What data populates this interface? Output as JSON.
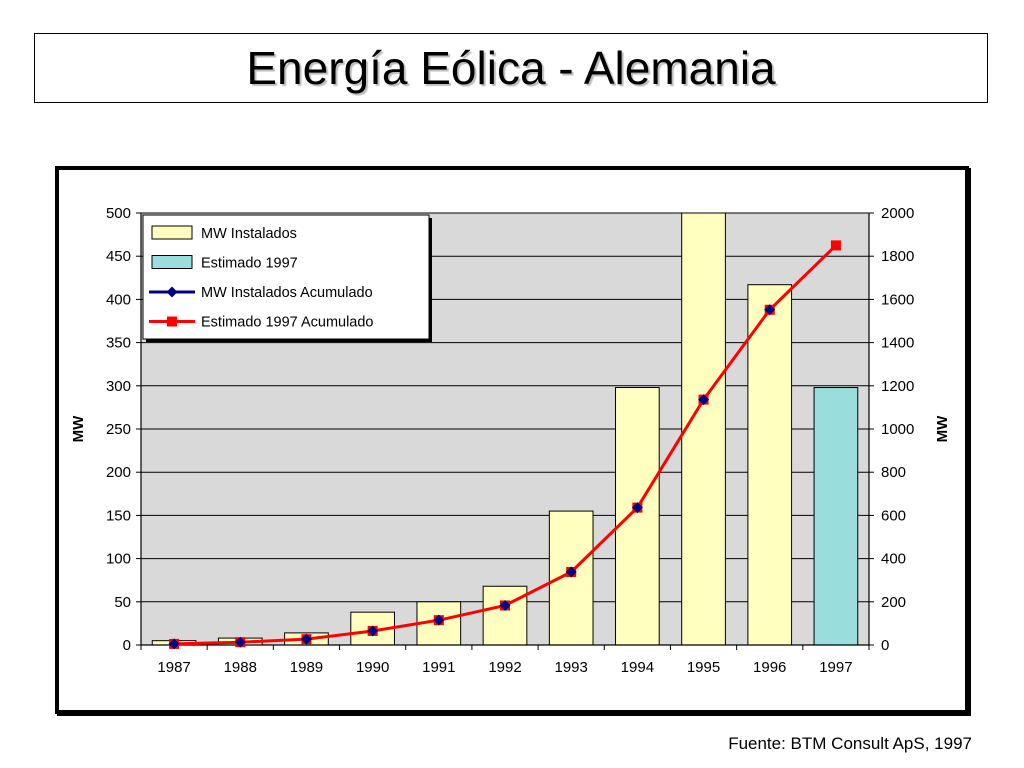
{
  "slide": {
    "title": "Energía Eólica - Alemania",
    "source": "Fuente: BTM Consult ApS, 1997"
  },
  "colors": {
    "plot_bg": "#d9d9d9",
    "bar_installed": "#ffffc0",
    "bar_estimate": "#99dddd",
    "line_cumulative": "#000080",
    "line_estimate": "#ff0000"
  },
  "chart_data": {
    "type": "bar",
    "categories": [
      "1987",
      "1988",
      "1989",
      "1990",
      "1991",
      "1992",
      "1993",
      "1994",
      "1995",
      "1996",
      "1997"
    ],
    "series": [
      {
        "name": "MW Instalados",
        "type": "bar",
        "axis": "left",
        "values": [
          5,
          8,
          14,
          38,
          50,
          68,
          155,
          298,
          500,
          417,
          null
        ]
      },
      {
        "name": "Estimado 1997",
        "type": "bar",
        "axis": "left",
        "values": [
          null,
          null,
          null,
          null,
          null,
          null,
          null,
          null,
          null,
          null,
          298
        ]
      },
      {
        "name": "MW Instalados Acumulado",
        "type": "line",
        "axis": "right",
        "marker": "diamond",
        "values": [
          5,
          13,
          27,
          65,
          115,
          183,
          338,
          636,
          1136,
          1552,
          null
        ]
      },
      {
        "name": "Estimado 1997 Acumulado",
        "type": "line",
        "axis": "right",
        "marker": "square",
        "values": [
          5,
          13,
          27,
          65,
          115,
          183,
          338,
          636,
          1136,
          1552,
          1850
        ]
      }
    ],
    "ylabel": "MW",
    "y2label": "MW",
    "ylim": [
      0,
      500
    ],
    "y2lim": [
      0,
      2000
    ],
    "yticks": [
      "0",
      "50",
      "100",
      "150",
      "200",
      "250",
      "300",
      "350",
      "400",
      "450",
      "500"
    ],
    "y2ticks": [
      "0",
      "200",
      "400",
      "600",
      "800",
      "1000",
      "1200",
      "1400",
      "1600",
      "1800",
      "2000"
    ],
    "grid": true,
    "legend_position": "top-left"
  }
}
